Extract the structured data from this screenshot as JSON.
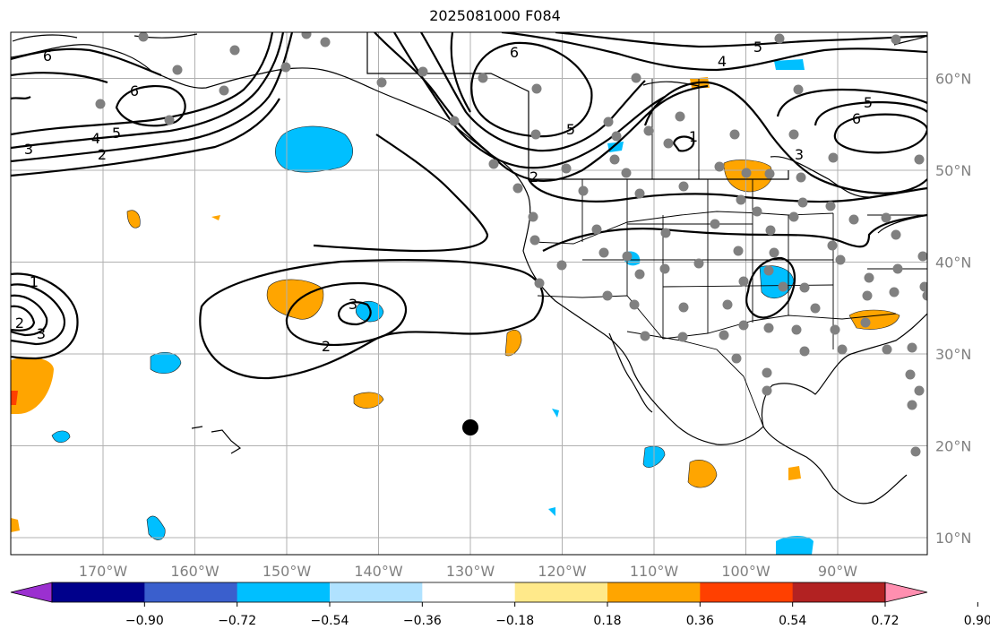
{
  "title": "2025081000 F084",
  "lon_ticks": [
    {
      "label": "170°W",
      "lon": -170
    },
    {
      "label": "160°W",
      "lon": -160
    },
    {
      "label": "150°W",
      "lon": -150
    },
    {
      "label": "140°W",
      "lon": -140
    },
    {
      "label": "130°W",
      "lon": -130
    },
    {
      "label": "120°W",
      "lon": -120
    },
    {
      "label": "110°W",
      "lon": -110
    },
    {
      "label": "100°W",
      "lon": -100
    },
    {
      "label": "90°W",
      "lon": -90
    }
  ],
  "lat_ticks": [
    {
      "label": "60°N",
      "lat": 60
    },
    {
      "label": "50°N",
      "lat": 50
    },
    {
      "label": "40°N",
      "lat": 40
    },
    {
      "label": "30°N",
      "lat": 30
    },
    {
      "label": "20°N",
      "lat": 20
    },
    {
      "label": "10°N",
      "lat": 10
    }
  ],
  "colorbar": {
    "colors": [
      "#9b30d0",
      "#00008b",
      "#3a5fcd",
      "#00bfff",
      "#b0e2ff",
      "#ffffff",
      "#ffe98a",
      "#ffa500",
      "#ff4000",
      "#b22222",
      "#ff8fb0"
    ],
    "tick_labels": [
      "−0.90",
      "−0.72",
      "−0.54",
      "−0.36",
      "−0.18",
      "0.18",
      "0.36",
      "0.54",
      "0.72",
      "0.90"
    ]
  },
  "contour_labels": [
    "6",
    "6",
    "6",
    "6",
    "5",
    "5",
    "5",
    "5",
    "4",
    "4",
    "3",
    "3",
    "3",
    "3",
    "2",
    "2",
    "2",
    "2",
    "1",
    "1"
  ],
  "station_marker": {
    "lon": -130,
    "lat": 22
  }
}
